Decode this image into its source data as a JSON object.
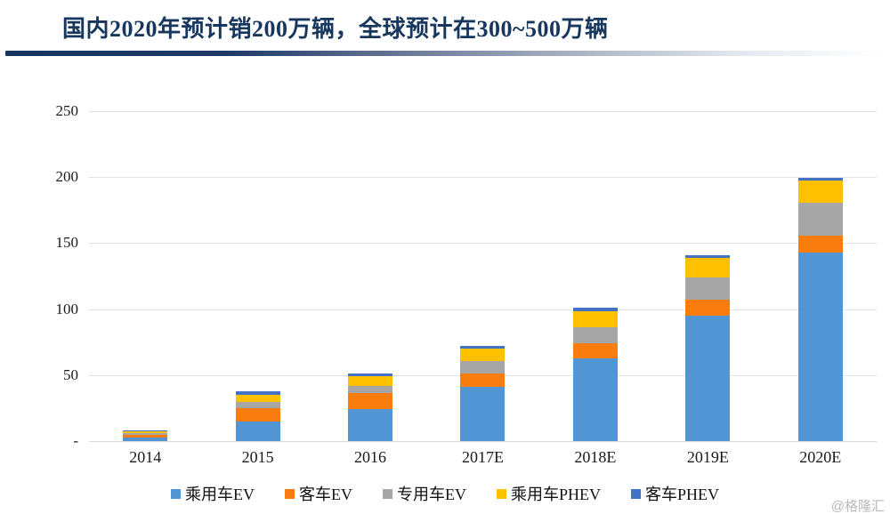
{
  "title": "国内2020年预计销200万辆，全球预计在300~500万辆",
  "watermark": "@格隆汇",
  "chart_data": {
    "type": "bar",
    "stacked": true,
    "title": "国内2020年预计销200万辆，全球预计在300~500万辆",
    "categories": [
      "2014",
      "2015",
      "2016",
      "2017E",
      "2018E",
      "2019E",
      "2020E"
    ],
    "series": [
      {
        "name": "乘用车EV",
        "color": "#5295D5",
        "values": [
          3,
          15,
          24.5,
          41,
          63,
          95,
          143
        ]
      },
      {
        "name": "客车EV",
        "color": "#F87D0E",
        "values": [
          2,
          10,
          11.7,
          10,
          11,
          12,
          12.5
        ]
      },
      {
        "name": "专用车EV",
        "color": "#A6A6A6",
        "values": [
          1,
          4.7,
          5.7,
          9.5,
          12.5,
          17,
          25
        ]
      },
      {
        "name": "乘用车PHEV",
        "color": "#FFC000",
        "values": [
          1.5,
          5.6,
          7.5,
          9.5,
          12,
          15,
          17
        ]
      },
      {
        "name": "客车PHEV",
        "color": "#4472C4",
        "values": [
          0.5,
          2.7,
          1.8,
          2,
          2.5,
          2,
          2
        ]
      }
    ],
    "totals": [
      8,
      38,
      51.2,
      72,
      101,
      141,
      199.5
    ],
    "xlabel": "",
    "ylabel": "",
    "ylim": [
      0,
      250
    ],
    "ytick_interval": 50,
    "ytick_labels": [
      "-",
      "50",
      "100",
      "150",
      "200",
      "250"
    ],
    "grid": true,
    "legend_position": "bottom"
  }
}
